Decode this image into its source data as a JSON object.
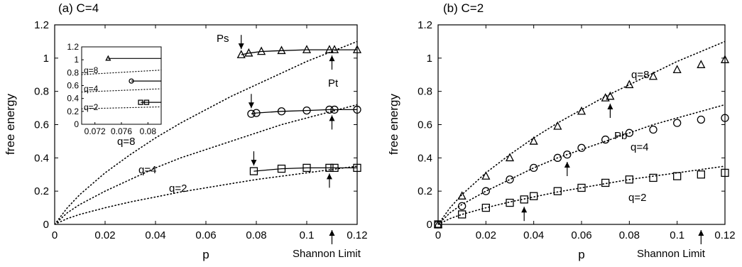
{
  "panels": [
    {
      "title": "(a) C=4",
      "ylabel": "free energy",
      "xlabel": "p",
      "xlim": [
        0,
        0.12
      ],
      "ylim": [
        0,
        1.2
      ],
      "xticks": [
        "0",
        "0.02",
        "0.04",
        "0.06",
        "0.08",
        "0.1",
        "0.12"
      ],
      "yticks": [
        "0",
        "0.2",
        "0.4",
        "0.6",
        "0.8",
        "1",
        "1.2"
      ],
      "shannon_label": "Shannon Limit",
      "curve_labels": [
        "q=8",
        "q=4",
        "q=2"
      ],
      "annotations": [
        "Ps",
        "Pt"
      ],
      "inset": {
        "xticks": [
          "0.072",
          "0.076",
          "0.08"
        ],
        "yticks": [
          "0",
          "0.2",
          "0.4",
          "0.6",
          "0.8",
          "1",
          "1.2"
        ],
        "curve_labels": [
          "q=8",
          "q=4",
          "q=2"
        ]
      }
    },
    {
      "title": "(b) C=2",
      "ylabel": "free energy",
      "xlabel": "p",
      "xlim": [
        0,
        0.12
      ],
      "ylim": [
        0,
        1.2
      ],
      "xticks": [
        "0",
        "0.02",
        "0.04",
        "0.06",
        "0.08",
        "0.1",
        "0.12"
      ],
      "yticks": [
        "0",
        "0.2",
        "0.4",
        "0.6",
        "0.8",
        "1",
        "1.2"
      ],
      "shannon_label": "Shannon Limit",
      "curve_labels": [
        "q=8",
        "q=4",
        "q=2"
      ],
      "annotations": [
        "Pb"
      ]
    }
  ],
  "chart_data": [
    {
      "type": "line",
      "title": "(a) C=4",
      "xlabel": "p",
      "ylabel": "free energy",
      "xlim": [
        0,
        0.12
      ],
      "ylim": [
        0,
        1.2
      ],
      "grid": false,
      "shannon_limit": 0.11,
      "series": [
        {
          "name": "q=8",
          "marker": "triangle",
          "x": [
            0.074,
            0.077,
            0.082,
            0.09,
            0.1,
            0.109,
            0.111,
            0.12
          ],
          "y": [
            1.02,
            1.03,
            1.04,
            1.045,
            1.05,
            1.05,
            1.05,
            1.05
          ]
        },
        {
          "name": "q=4",
          "marker": "circle",
          "x": [
            0.078,
            0.08,
            0.09,
            0.1,
            0.109,
            0.111,
            0.12
          ],
          "y": [
            0.665,
            0.67,
            0.68,
            0.685,
            0.69,
            0.69,
            0.69
          ]
        },
        {
          "name": "q=2",
          "marker": "square",
          "x": [
            0.079,
            0.09,
            0.1,
            0.109,
            0.111,
            0.12
          ],
          "y": [
            0.32,
            0.335,
            0.34,
            0.34,
            0.34,
            0.34
          ]
        }
      ],
      "reference_curves": [
        {
          "name": "q=8",
          "style": "dotted",
          "x": [
            0,
            0.005,
            0.01,
            0.02,
            0.03,
            0.04,
            0.05,
            0.06,
            0.07,
            0.08,
            0.09,
            0.1,
            0.11,
            0.12
          ],
          "y": [
            0,
            0.1,
            0.18,
            0.31,
            0.42,
            0.52,
            0.61,
            0.69,
            0.77,
            0.84,
            0.91,
            0.98,
            1.04,
            1.1
          ]
        },
        {
          "name": "q=4",
          "style": "dotted",
          "x": [
            0,
            0.005,
            0.01,
            0.02,
            0.03,
            0.04,
            0.05,
            0.06,
            0.07,
            0.08,
            0.09,
            0.1,
            0.11,
            0.12
          ],
          "y": [
            0,
            0.07,
            0.12,
            0.2,
            0.27,
            0.34,
            0.4,
            0.45,
            0.5,
            0.55,
            0.6,
            0.64,
            0.68,
            0.72
          ]
        },
        {
          "name": "q=2",
          "style": "dotted",
          "x": [
            0,
            0.005,
            0.01,
            0.02,
            0.03,
            0.04,
            0.05,
            0.06,
            0.07,
            0.08,
            0.09,
            0.1,
            0.11,
            0.12
          ],
          "y": [
            0,
            0.035,
            0.06,
            0.1,
            0.135,
            0.165,
            0.195,
            0.22,
            0.245,
            0.27,
            0.29,
            0.31,
            0.33,
            0.35
          ]
        }
      ],
      "arrows": [
        {
          "label": "Ps",
          "x": 0.074,
          "y": 1.02,
          "direction": "down"
        },
        {
          "label": "Pt",
          "x": 0.11,
          "y": 1.05,
          "direction": "up"
        },
        {
          "label": "",
          "x": 0.078,
          "y": 0.665,
          "direction": "down"
        },
        {
          "label": "",
          "x": 0.11,
          "y": 0.69,
          "direction": "up"
        },
        {
          "label": "",
          "x": 0.079,
          "y": 0.32,
          "direction": "down"
        },
        {
          "label": "",
          "x": 0.109,
          "y": 0.34,
          "direction": "up"
        },
        {
          "label": "",
          "x": 0.11,
          "y": 0,
          "direction": "up"
        }
      ],
      "inset": {
        "type": "line",
        "xlim": [
          0.07,
          0.082
        ],
        "ylim": [
          0,
          1.2
        ],
        "series": [
          {
            "name": "q=8",
            "marker": "triangle",
            "x": [
              0.074,
              0.082
            ],
            "y": [
              1.02,
              1.02
            ]
          },
          {
            "name": "q=4",
            "marker": "circle",
            "x": [
              0.0775,
              0.082
            ],
            "y": [
              0.67,
              0.67
            ]
          },
          {
            "name": "q=2",
            "marker": "square",
            "x": [
              0.0789,
              0.0798,
              0.082
            ],
            "y": [
              0.34,
              0.34,
              0.34
            ]
          }
        ],
        "reference_lines": [
          {
            "name": "q=8",
            "style": "dotted",
            "y": [
              0.77,
              0.84
            ]
          },
          {
            "name": "q=4",
            "style": "dotted",
            "y": [
              0.5,
              0.55
            ]
          },
          {
            "name": "q=2",
            "style": "dotted",
            "y": [
              0.24,
              0.27
            ]
          }
        ]
      }
    },
    {
      "type": "scatter",
      "title": "(b) C=2",
      "xlabel": "p",
      "ylabel": "free energy",
      "xlim": [
        0,
        0.12
      ],
      "ylim": [
        0,
        1.2
      ],
      "grid": false,
      "shannon_limit": 0.11,
      "series": [
        {
          "name": "q=8",
          "marker": "triangle",
          "x": [
            0,
            0.01,
            0.02,
            0.03,
            0.04,
            0.05,
            0.06,
            0.07,
            0.072,
            0.08,
            0.09,
            0.1,
            0.11,
            0.12
          ],
          "y": [
            0,
            0.17,
            0.29,
            0.4,
            0.5,
            0.59,
            0.68,
            0.76,
            0.77,
            0.84,
            0.89,
            0.93,
            0.96,
            0.99
          ]
        },
        {
          "name": "q=4",
          "marker": "circle",
          "x": [
            0,
            0.01,
            0.02,
            0.03,
            0.04,
            0.05,
            0.054,
            0.06,
            0.07,
            0.08,
            0.09,
            0.1,
            0.11,
            0.12
          ],
          "y": [
            0,
            0.11,
            0.2,
            0.27,
            0.34,
            0.4,
            0.42,
            0.46,
            0.51,
            0.55,
            0.57,
            0.61,
            0.63,
            0.64
          ]
        },
        {
          "name": "q=2",
          "marker": "square",
          "x": [
            0,
            0.01,
            0.02,
            0.03,
            0.036,
            0.04,
            0.05,
            0.06,
            0.07,
            0.08,
            0.09,
            0.1,
            0.11,
            0.12
          ],
          "y": [
            0,
            0.06,
            0.1,
            0.13,
            0.15,
            0.17,
            0.2,
            0.22,
            0.25,
            0.27,
            0.28,
            0.29,
            0.3,
            0.31
          ]
        }
      ],
      "reference_curves": [
        {
          "name": "q=8",
          "style": "dotted",
          "x": [
            0,
            0.005,
            0.01,
            0.02,
            0.03,
            0.04,
            0.05,
            0.06,
            0.07,
            0.08,
            0.09,
            0.1,
            0.11,
            0.12
          ],
          "y": [
            0,
            0.1,
            0.18,
            0.31,
            0.42,
            0.52,
            0.61,
            0.69,
            0.77,
            0.84,
            0.91,
            0.98,
            1.04,
            1.1
          ]
        },
        {
          "name": "q=4",
          "style": "dotted",
          "x": [
            0,
            0.005,
            0.01,
            0.02,
            0.03,
            0.04,
            0.05,
            0.06,
            0.07,
            0.08,
            0.09,
            0.1,
            0.11,
            0.12
          ],
          "y": [
            0,
            0.07,
            0.12,
            0.2,
            0.27,
            0.34,
            0.4,
            0.45,
            0.5,
            0.55,
            0.6,
            0.64,
            0.68,
            0.72
          ]
        },
        {
          "name": "q=2",
          "style": "dotted",
          "x": [
            0,
            0.005,
            0.01,
            0.02,
            0.03,
            0.04,
            0.05,
            0.06,
            0.07,
            0.08,
            0.09,
            0.1,
            0.11,
            0.12
          ],
          "y": [
            0,
            0.035,
            0.06,
            0.1,
            0.135,
            0.165,
            0.195,
            0.22,
            0.245,
            0.27,
            0.29,
            0.31,
            0.33,
            0.35
          ]
        }
      ],
      "arrows": [
        {
          "label": "Pb",
          "x": 0.072,
          "y": 0.76,
          "direction": "up"
        },
        {
          "label": "",
          "x": 0.054,
          "y": 0.41,
          "direction": "up"
        },
        {
          "label": "",
          "x": 0.036,
          "y": 0.14,
          "direction": "up"
        },
        {
          "label": "",
          "x": 0.11,
          "y": 0,
          "direction": "up"
        }
      ]
    }
  ]
}
